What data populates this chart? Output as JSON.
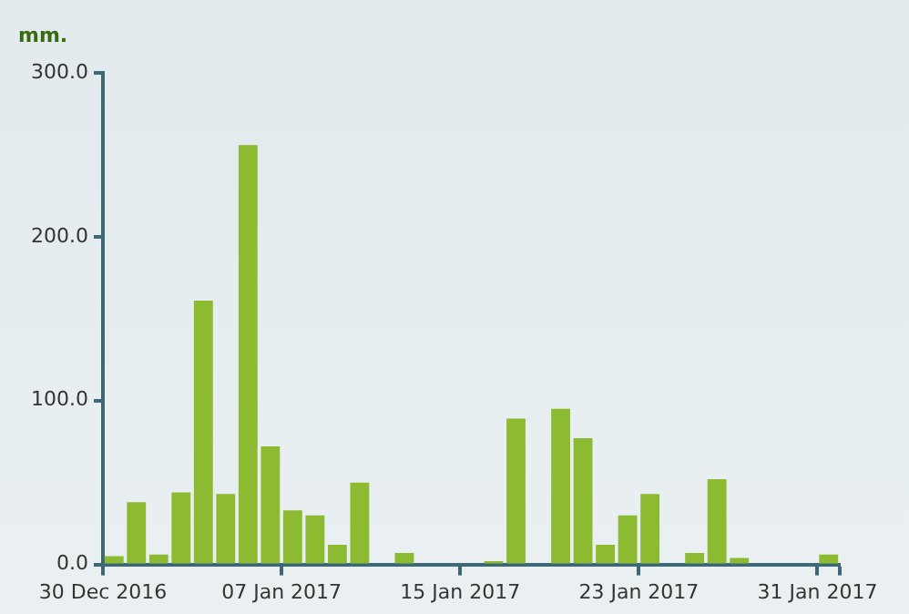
{
  "chart_data": {
    "type": "bar",
    "ylabel": "mm.",
    "color": "#8cbb32",
    "x": [
      "2016-12-30T12:00",
      "2016-12-31T12:00",
      "2017-01-01T12:00",
      "2017-01-02T12:00",
      "2017-01-03T12:00",
      "2017-01-04T12:00",
      "2017-01-05T12:00",
      "2017-01-06T12:00",
      "2017-01-07T12:00",
      "2017-01-08T12:00",
      "2017-01-09T12:00",
      "2017-01-10T12:00",
      "2017-01-11T12:00",
      "2017-01-12T12:00",
      "2017-01-13T12:00",
      "2017-01-14T12:00",
      "2017-01-15T12:00",
      "2017-01-16T12:00",
      "2017-01-17T12:00",
      "2017-01-18T12:00",
      "2017-01-19T12:00",
      "2017-01-20T12:00",
      "2017-01-21T12:00",
      "2017-01-22T12:00",
      "2017-01-23T12:00",
      "2017-01-24T12:00",
      "2017-01-25T12:00",
      "2017-01-26T12:00",
      "2017-01-27T12:00",
      "2017-01-28T12:00",
      "2017-01-29T12:00",
      "2017-01-30T12:00",
      "2017-01-31T12:00"
    ],
    "values": [
      5,
      38,
      6,
      44,
      161,
      43,
      256,
      72,
      33,
      30,
      12,
      50,
      0,
      7,
      0,
      0,
      0,
      2,
      89,
      0,
      95,
      77,
      12,
      30,
      43,
      0,
      7,
      52,
      4,
      0,
      0,
      0,
      6
    ],
    "xlim": [
      "2016-12-30",
      "2017-02-01"
    ],
    "xticks": [
      {
        "value": "2016-12-30",
        "label": "30 Dec 2016"
      },
      {
        "value": "2017-01-07",
        "label": "07 Jan 2017"
      },
      {
        "value": "2017-01-15",
        "label": "15 Jan 2017"
      },
      {
        "value": "2017-01-23",
        "label": "23 Jan 2017"
      },
      {
        "value": "2017-01-31",
        "label": "31 Jan 2017"
      },
      {
        "value": "2017-02-01",
        "label": null
      }
    ],
    "ylim": [
      0,
      300
    ],
    "yticks": [
      {
        "value": 0,
        "label": "0.0"
      },
      {
        "value": 100,
        "label": "100.0"
      },
      {
        "value": 200,
        "label": "200.0"
      },
      {
        "value": 300,
        "label": "300.0"
      }
    ],
    "grid": false,
    "legend": false
  }
}
